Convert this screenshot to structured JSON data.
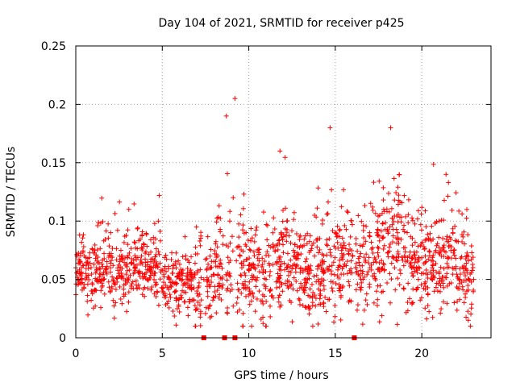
{
  "chart_data": {
    "type": "scatter",
    "title": "Day 104 of 2021, SRMTID for receiver p425",
    "xlabel": "GPS time / hours",
    "ylabel": "SRMTID / TECUs",
    "xlim": [
      0,
      24
    ],
    "ylim": [
      0,
      0.25
    ],
    "x_ticks": [
      0,
      5,
      10,
      15,
      20
    ],
    "x_tick_labels": [
      "0",
      "5",
      "10",
      "15",
      "20"
    ],
    "y_ticks": [
      0,
      0.05,
      0.1,
      0.15,
      0.2,
      0.25
    ],
    "y_tick_labels": [
      "0",
      "0.05",
      "0.1",
      "0.15",
      "0.2",
      "0.25"
    ],
    "grid": true,
    "marker": "plus",
    "color": "#ff0000",
    "series": [
      {
        "name": "SRMTID",
        "x": [
          0.0,
          0.3,
          0.5,
          0.9,
          1.2,
          1.6,
          2.0,
          2.3,
          2.7,
          3.0,
          3.4,
          3.8,
          4.2,
          4.6,
          5.0,
          5.4,
          5.8,
          6.2,
          6.6,
          7.0,
          7.4,
          7.8,
          8.2,
          8.5,
          8.7,
          8.9,
          9.1,
          9.2,
          9.5,
          9.8,
          10.2,
          10.6,
          11.0,
          11.4,
          11.8,
          12.2,
          12.6,
          13.0,
          13.4,
          13.8,
          14.2,
          14.5,
          14.7,
          15.0,
          15.4,
          15.8,
          16.2,
          16.6,
          17.0,
          17.4,
          17.8,
          18.2,
          18.6,
          19.0,
          19.4,
          19.8,
          20.2,
          20.6,
          21.0,
          21.4,
          21.8,
          22.2,
          22.6,
          23.0
        ],
        "y": [
          0.06,
          0.05,
          0.07,
          0.04,
          0.06,
          0.05,
          0.06,
          0.03,
          0.07,
          0.08,
          0.06,
          0.07,
          0.05,
          0.045,
          0.04,
          0.05,
          0.06,
          0.045,
          0.05,
          0.04,
          0.05,
          0.06,
          0.07,
          0.08,
          0.19,
          0.1,
          0.12,
          0.205,
          0.07,
          0.08,
          0.05,
          0.04,
          0.05,
          0.08,
          0.16,
          0.1,
          0.07,
          0.06,
          0.05,
          0.07,
          0.06,
          0.08,
          0.18,
          0.09,
          0.07,
          0.08,
          0.06,
          0.05,
          0.06,
          0.09,
          0.11,
          0.18,
          0.09,
          0.07,
          0.06,
          0.05,
          0.07,
          0.06,
          0.1,
          0.14,
          0.09,
          0.05,
          0.04,
          0.05
        ]
      }
    ],
    "gap_markers_x": [
      7.4,
      8.6,
      9.2,
      16.1
    ],
    "gap_markers_y": [
      0,
      0,
      0,
      0
    ],
    "scatter_density": {
      "hourly_mean": [
        0.058,
        0.057,
        0.058,
        0.062,
        0.06,
        0.045,
        0.047,
        0.047,
        0.058,
        0.062,
        0.053,
        0.062,
        0.068,
        0.053,
        0.058,
        0.068,
        0.06,
        0.073,
        0.083,
        0.063,
        0.062,
        0.07,
        0.052,
        0.043
      ],
      "hourly_spread": [
        0.018,
        0.02,
        0.02,
        0.02,
        0.018,
        0.016,
        0.018,
        0.02,
        0.025,
        0.028,
        0.022,
        0.026,
        0.028,
        0.022,
        0.025,
        0.026,
        0.022,
        0.028,
        0.03,
        0.024,
        0.024,
        0.026,
        0.02,
        0.015
      ],
      "points_per_hour": 75,
      "seed": 104
    }
  }
}
